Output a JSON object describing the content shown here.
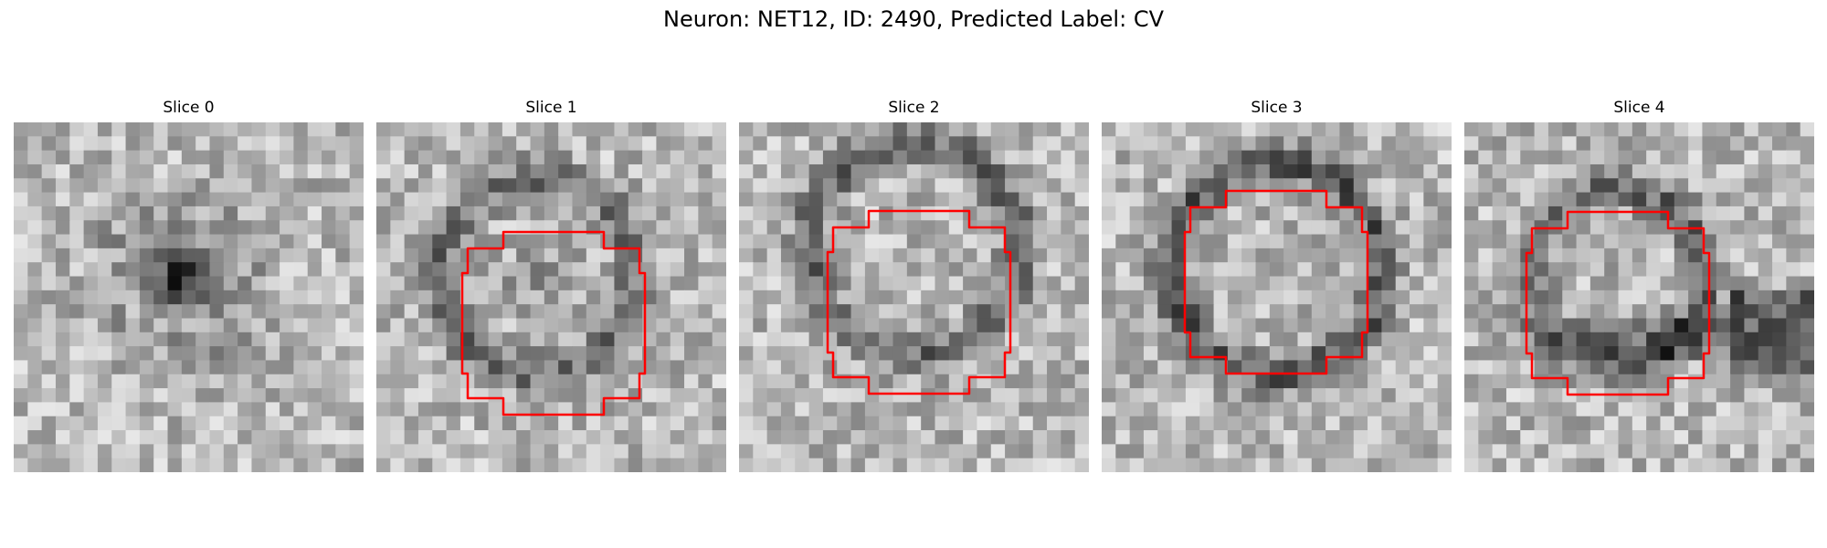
{
  "figure": {
    "title": "Neuron: NET12, ID: 2490, Predicted Label: CV",
    "slices": [
      {
        "title": "Slice 0",
        "dark_ring": 0.25,
        "dark_blob": 1.0,
        "contour": false,
        "seed": 11
      },
      {
        "title": "Slice 1",
        "dark_ring": 0.75,
        "dark_blob": 0.2,
        "contour": true,
        "seed": 23
      },
      {
        "title": "Slice 2",
        "dark_ring": 0.8,
        "dark_blob": 0.0,
        "contour": true,
        "seed": 37
      },
      {
        "title": "Slice 3",
        "dark_ring": 1.0,
        "dark_blob": 0.0,
        "contour": true,
        "seed": 51
      },
      {
        "title": "Slice 4",
        "dark_ring": 0.85,
        "dark_blob": 0.0,
        "contour": true,
        "seed": 67
      }
    ],
    "colors": {
      "background": "#ffffff",
      "contour": "#ff0000",
      "text": "#000000"
    },
    "colormap": "gray"
  }
}
